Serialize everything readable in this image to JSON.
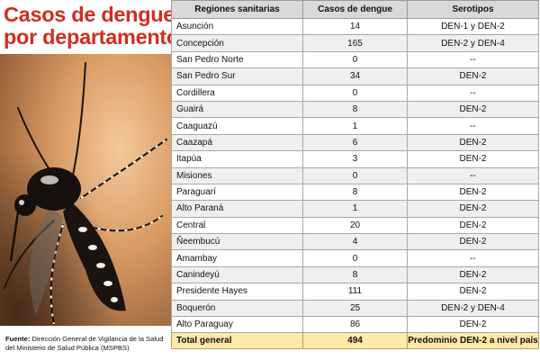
{
  "title": {
    "line1": "Casos de dengue",
    "line2": "por departamento"
  },
  "source": {
    "label": "Fuente:",
    "text": "Dirección General de Vigilancia de la Salud del Ministerio de Salud Pública (MSPBS)"
  },
  "table": {
    "headers": [
      "Regiones sanitarias",
      "Casos de dengue",
      "Serotipos"
    ],
    "rows": [
      {
        "region": "Asunción",
        "cases": "14",
        "serotype": "DEN-1 y DEN-2"
      },
      {
        "region": "Concepción",
        "cases": "165",
        "serotype": "DEN-2 y DEN-4"
      },
      {
        "region": "San Pedro Norte",
        "cases": "0",
        "serotype": "--"
      },
      {
        "region": "San Pedro Sur",
        "cases": "34",
        "serotype": "DEN-2"
      },
      {
        "region": "Cordillera",
        "cases": "0",
        "serotype": "--"
      },
      {
        "region": "Guairá",
        "cases": "8",
        "serotype": "DEN-2"
      },
      {
        "region": "Caaguazú",
        "cases": "1",
        "serotype": "--"
      },
      {
        "region": "Caazapá",
        "cases": "6",
        "serotype": "DEN-2"
      },
      {
        "region": "Itapúa",
        "cases": "3",
        "serotype": "DEN-2"
      },
      {
        "region": "Misiones",
        "cases": "0",
        "serotype": "--"
      },
      {
        "region": "Paraguarí",
        "cases": "8",
        "serotype": "DEN-2"
      },
      {
        "region": "Alto Paraná",
        "cases": "1",
        "serotype": "DEN-2"
      },
      {
        "region": "Central",
        "cases": "20",
        "serotype": "DEN-2"
      },
      {
        "region": "Ñeembucú",
        "cases": "4",
        "serotype": "DEN-2"
      },
      {
        "region": "Amambay",
        "cases": "0",
        "serotype": "--"
      },
      {
        "region": "Canindeyú",
        "cases": "8",
        "serotype": "DEN-2"
      },
      {
        "region": "Presidente Hayes",
        "cases": "111",
        "serotype": "DEN-2"
      },
      {
        "region": "Boquerón",
        "cases": "25",
        "serotype": "DEN-2 y DEN-4"
      },
      {
        "region": "Alto Paraguay",
        "cases": "86",
        "serotype": "DEN-2"
      }
    ],
    "total": {
      "label": "Total general",
      "cases": "494",
      "serotype": "Predominio DEN-2 a nivel país"
    }
  },
  "colors": {
    "title": "#d32b1e",
    "header_bg": "#d9d9d9",
    "total_bg": "#ffe9a8"
  }
}
